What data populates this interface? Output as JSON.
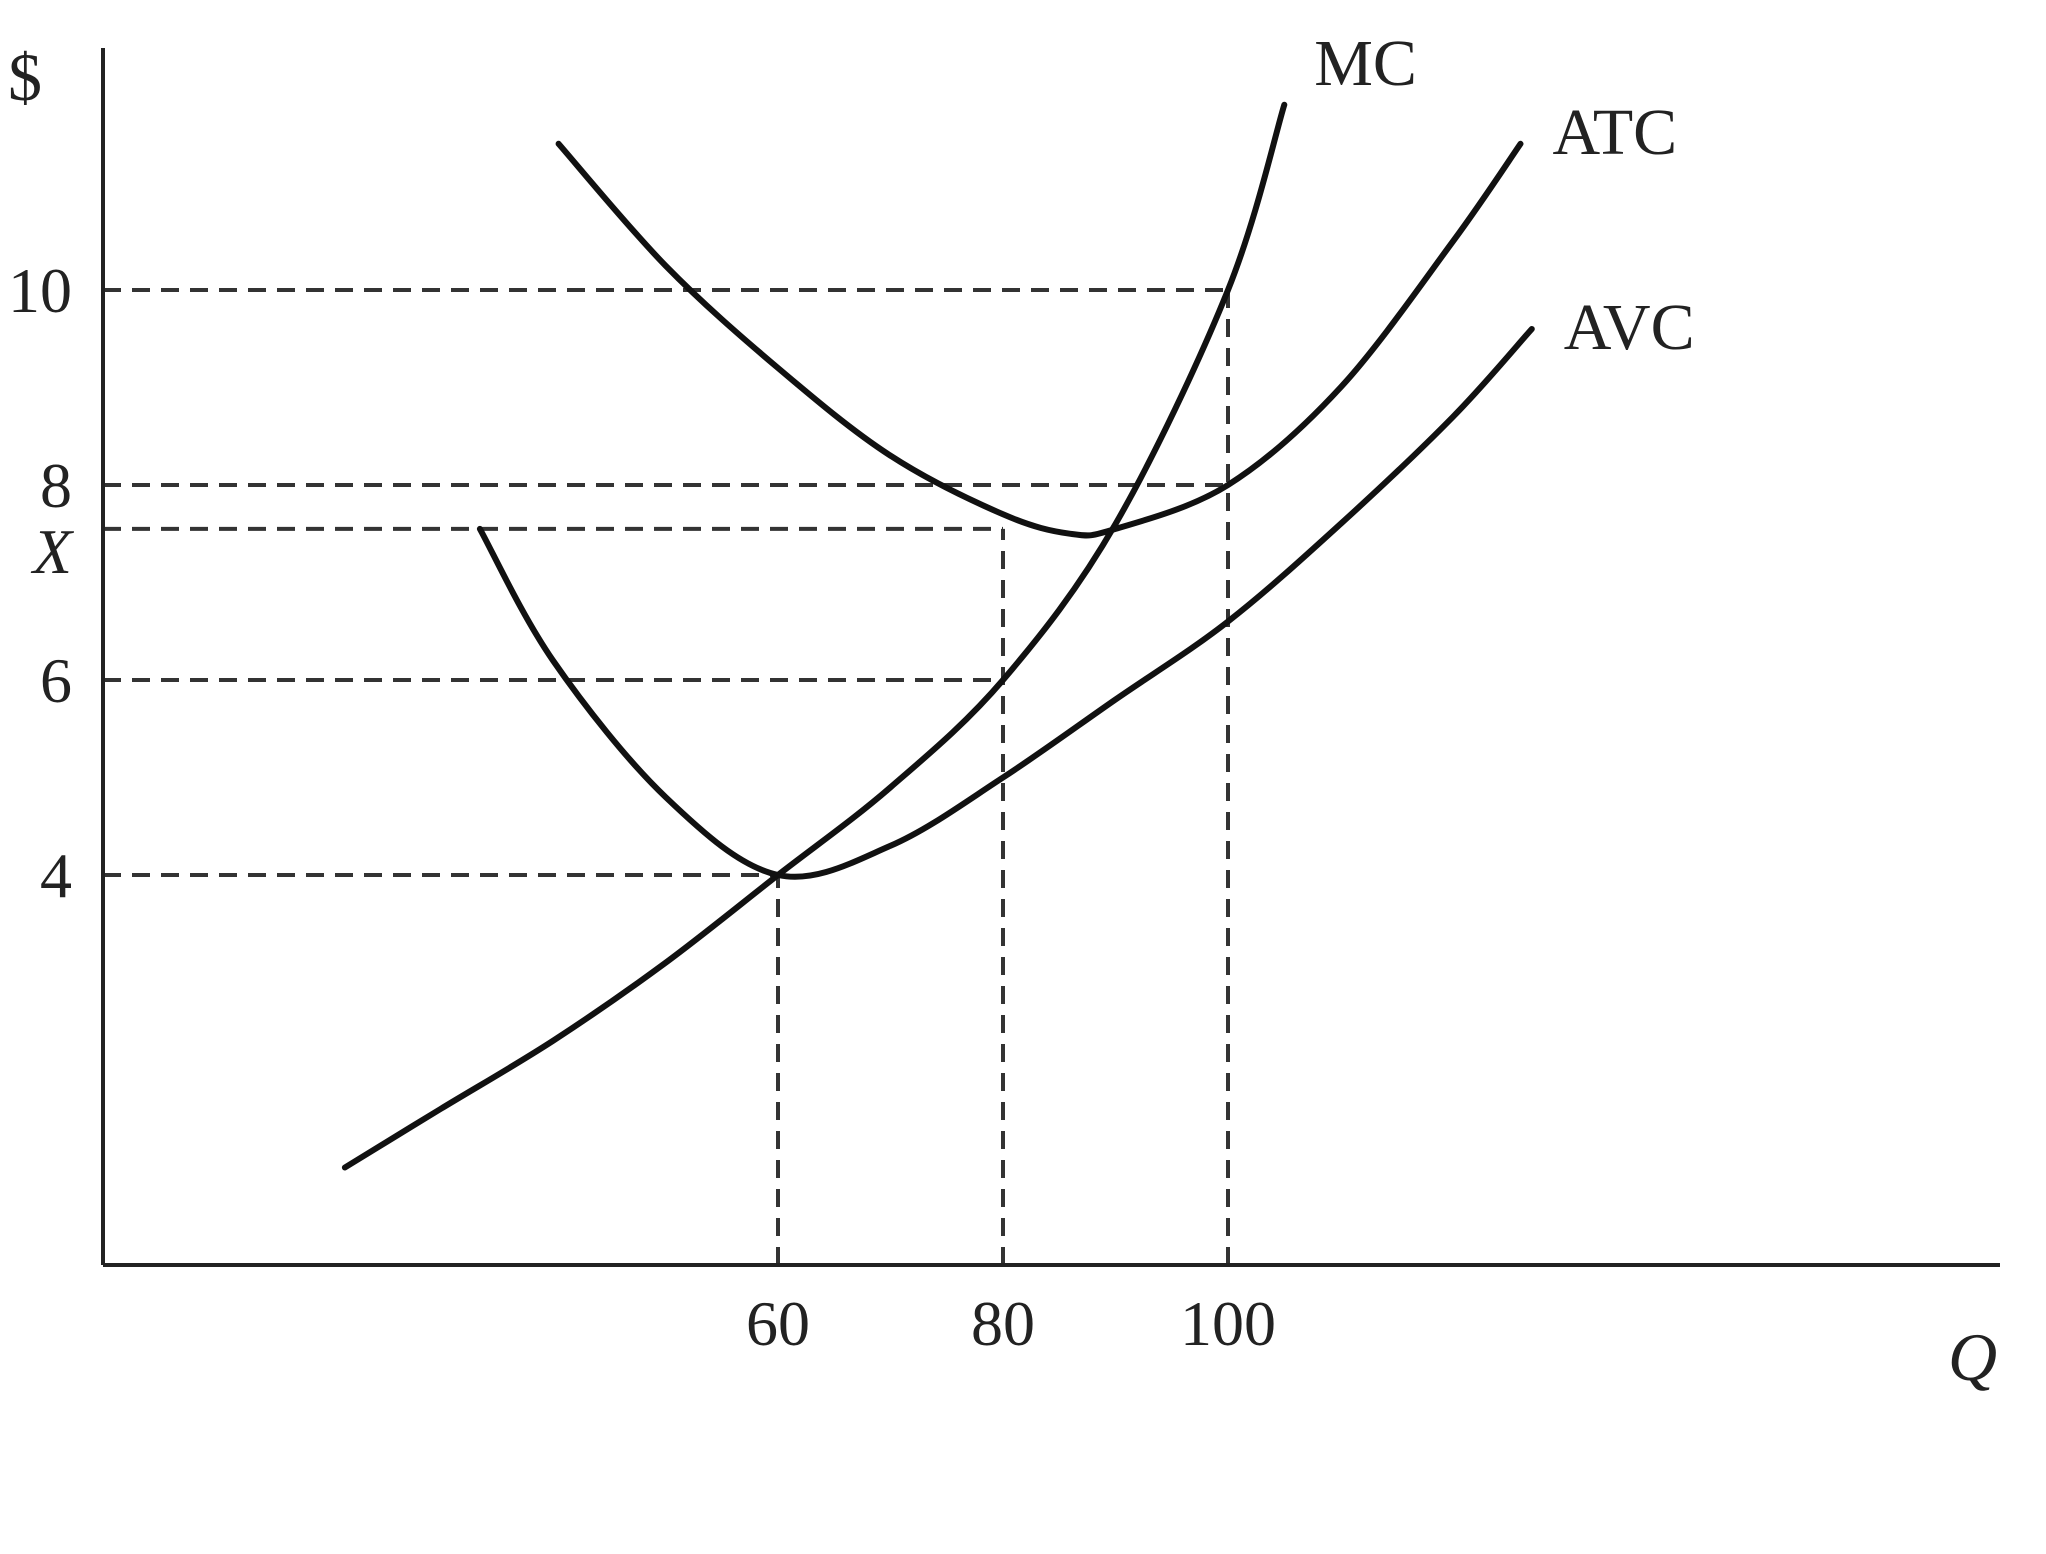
{
  "chart_data": {
    "type": "line",
    "title": "",
    "xlabel": "Q",
    "ylabel": "$",
    "xlim": [
      0,
      137
    ],
    "ylim": [
      0,
      12.5
    ],
    "grid": false,
    "legend": "none",
    "x_ticks": [
      {
        "value": 60,
        "label": "60"
      },
      {
        "value": 80,
        "label": "80"
      },
      {
        "value": 100,
        "label": "100"
      }
    ],
    "y_ticks": [
      {
        "value": 10,
        "label": "10"
      },
      {
        "value": 8,
        "label": "8"
      },
      {
        "value": 7.55,
        "label": "X"
      },
      {
        "value": 6,
        "label": "6"
      },
      {
        "value": 4,
        "label": "4"
      }
    ],
    "series": [
      {
        "name": "MC",
        "points": [
          [
            21.5,
            1.0
          ],
          [
            30,
            1.6
          ],
          [
            40,
            2.3
          ],
          [
            50,
            3.1
          ],
          [
            60,
            4.0
          ],
          [
            70,
            4.9
          ],
          [
            80,
            6.0
          ],
          [
            90,
            7.6
          ],
          [
            100,
            10.0
          ],
          [
            105,
            11.9
          ]
        ]
      },
      {
        "name": "ATC",
        "points": [
          [
            40.5,
            11.5
          ],
          [
            50,
            10.25
          ],
          [
            60,
            9.2
          ],
          [
            70,
            8.3
          ],
          [
            80,
            7.7
          ],
          [
            86,
            7.5
          ],
          [
            90,
            7.55
          ],
          [
            100,
            8.0
          ],
          [
            110,
            9.0
          ],
          [
            120,
            10.5
          ],
          [
            126,
            11.5
          ]
        ]
      },
      {
        "name": "AVC",
        "points": [
          [
            33.5,
            7.55
          ],
          [
            40,
            6.2
          ],
          [
            50,
            4.8
          ],
          [
            60,
            4.0
          ],
          [
            70,
            4.3
          ],
          [
            80,
            5.0
          ],
          [
            90,
            5.8
          ],
          [
            100,
            6.6
          ],
          [
            110,
            7.6
          ],
          [
            120,
            8.7
          ],
          [
            127,
            9.6
          ]
        ]
      }
    ],
    "reference_lines": [
      {
        "type": "h",
        "y": 10,
        "x_to": 100
      },
      {
        "type": "h",
        "y": 8,
        "x_to": 100
      },
      {
        "type": "h",
        "y": 7.55,
        "x_to": 80
      },
      {
        "type": "h",
        "y": 6,
        "x_to": 80
      },
      {
        "type": "h",
        "y": 4,
        "x_to": 60
      },
      {
        "type": "v",
        "x": 60,
        "y_to": 4
      },
      {
        "type": "v",
        "x": 80,
        "y_to": 7.55
      },
      {
        "type": "v",
        "x": 100,
        "y_to": 10
      }
    ]
  }
}
